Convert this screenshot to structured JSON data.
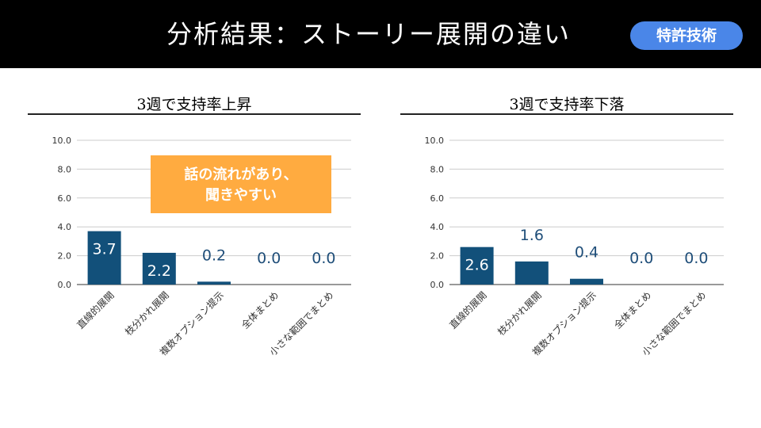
{
  "header": {
    "title": "分析結果：ストーリー展開の違い",
    "badge": "特許技術"
  },
  "colors": {
    "header_bg": "#000000",
    "badge": "#4a86e8",
    "bar": "#12507a",
    "callout": "#ffab40"
  },
  "callout": {
    "line1": "話の流れがあり、",
    "line2": "聞きやすい"
  },
  "chart_data": [
    {
      "type": "bar",
      "title": "3週で支持率上昇",
      "categories": [
        "直線的展開",
        "枝分かれ展開",
        "複数オプション提示",
        "全体まとめ",
        "小さな範囲でまとめ"
      ],
      "values": [
        3.7,
        2.2,
        0.2,
        0.0,
        0.0
      ],
      "ylim": [
        0,
        10
      ],
      "yticks": [
        "0.0",
        "2.0",
        "4.0",
        "6.0",
        "8.0",
        "10.0"
      ],
      "grid": true
    },
    {
      "type": "bar",
      "title": "3週で支持率下落",
      "categories": [
        "直線的展開",
        "枝分かれ展開",
        "複数オプション提示",
        "全体まとめ",
        "小さな範囲でまとめ"
      ],
      "values": [
        2.6,
        1.6,
        0.4,
        0.0,
        0.0
      ],
      "ylim": [
        0,
        10
      ],
      "yticks": [
        "0.0",
        "2.0",
        "4.0",
        "6.0",
        "8.0",
        "10.0"
      ],
      "grid": true
    }
  ]
}
